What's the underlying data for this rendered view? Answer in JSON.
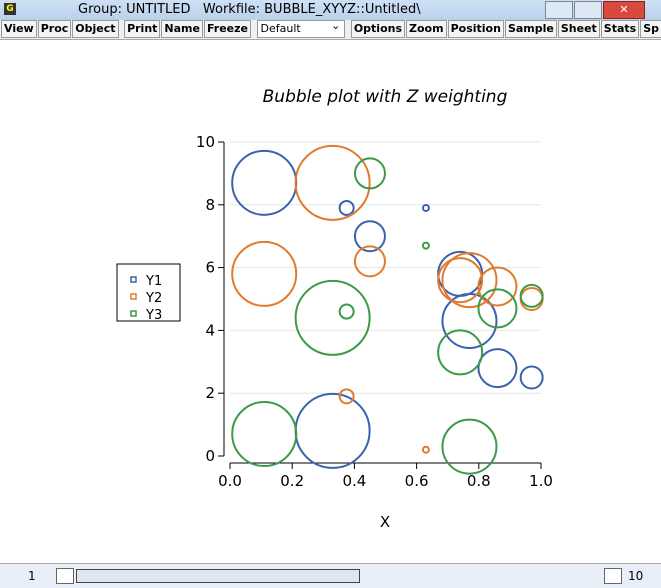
{
  "window": {
    "title": "Group: UNTITLED   Workfile: BUBBLE_XYYZ::Untitled\\",
    "icon": "G"
  },
  "toolbar": {
    "buttons_left": [
      "View",
      "Proc",
      "Object"
    ],
    "buttons_mid": [
      "Print",
      "Name",
      "Freeze"
    ],
    "dropdown": "Default",
    "buttons_right": [
      "Options",
      "Zoom",
      "Position",
      "Sample",
      "Sheet",
      "Stats",
      "Sp"
    ]
  },
  "status": {
    "start": "1",
    "end": "10"
  },
  "chart_data": {
    "type": "bubble",
    "title": "Bubble plot with Z weighting",
    "x_label": "X",
    "x": [
      0.11,
      0.33,
      0.375,
      0.45,
      0.63,
      0.74,
      0.77,
      0.86,
      0.97
    ],
    "sizes": [
      3.2,
      3.7,
      0.7,
      1.5,
      0.3,
      2.2,
      2.7,
      1.9,
      1.1
    ],
    "series": [
      {
        "name": "Y1",
        "color": "#3a62ad",
        "values": [
          8.7,
          0.8,
          7.9,
          7.0,
          7.9,
          5.8,
          4.3,
          2.8,
          2.5
        ]
      },
      {
        "name": "Y2",
        "color": "#e07b2e",
        "values": [
          5.8,
          8.7,
          1.9,
          6.2,
          0.2,
          5.6,
          5.6,
          5.4,
          5.0
        ]
      },
      {
        "name": "Y3",
        "color": "#3c9a48",
        "values": [
          0.7,
          4.4,
          4.6,
          9.0,
          6.7,
          3.3,
          0.3,
          4.7,
          5.1
        ]
      }
    ],
    "xlim": [
      0,
      1
    ],
    "xticks": [
      {
        "value": 0,
        "label": "0.0"
      },
      0.2,
      0.4,
      0.6,
      0.8,
      {
        "value": 1,
        "label": "1.0"
      }
    ],
    "ylim": [
      0,
      10
    ],
    "yticks": [
      0,
      2,
      4,
      6,
      8,
      10
    ],
    "grid": true,
    "legend": "left"
  }
}
